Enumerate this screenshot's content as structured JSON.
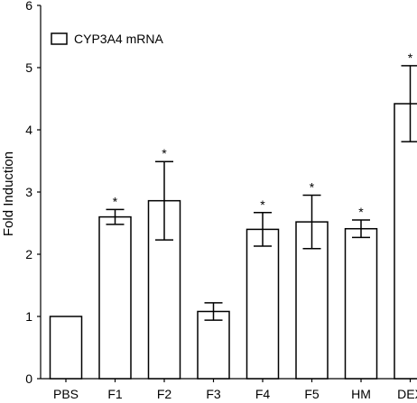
{
  "chart_data": {
    "type": "bar",
    "categories": [
      "PBS",
      "F1",
      "F2",
      "F3",
      "F4",
      "F5",
      "HM",
      "DEX"
    ],
    "series": [
      {
        "name": "CYP3A4 mRNA",
        "values": [
          1.0,
          2.6,
          2.86,
          1.08,
          2.4,
          2.52,
          2.41,
          4.42
        ],
        "error": [
          0,
          0.12,
          0.63,
          0.14,
          0.27,
          0.43,
          0.14,
          0.61
        ],
        "significant": [
          false,
          true,
          true,
          false,
          true,
          true,
          true,
          true
        ]
      }
    ],
    "significance_marker": "*",
    "ylabel": "Fold Induction",
    "xlabel": "",
    "ylim": [
      0,
      6
    ],
    "yticks": [
      "0",
      "1",
      "2",
      "3",
      "4",
      "5",
      "6"
    ],
    "legend": "top-left",
    "grid": false
  }
}
